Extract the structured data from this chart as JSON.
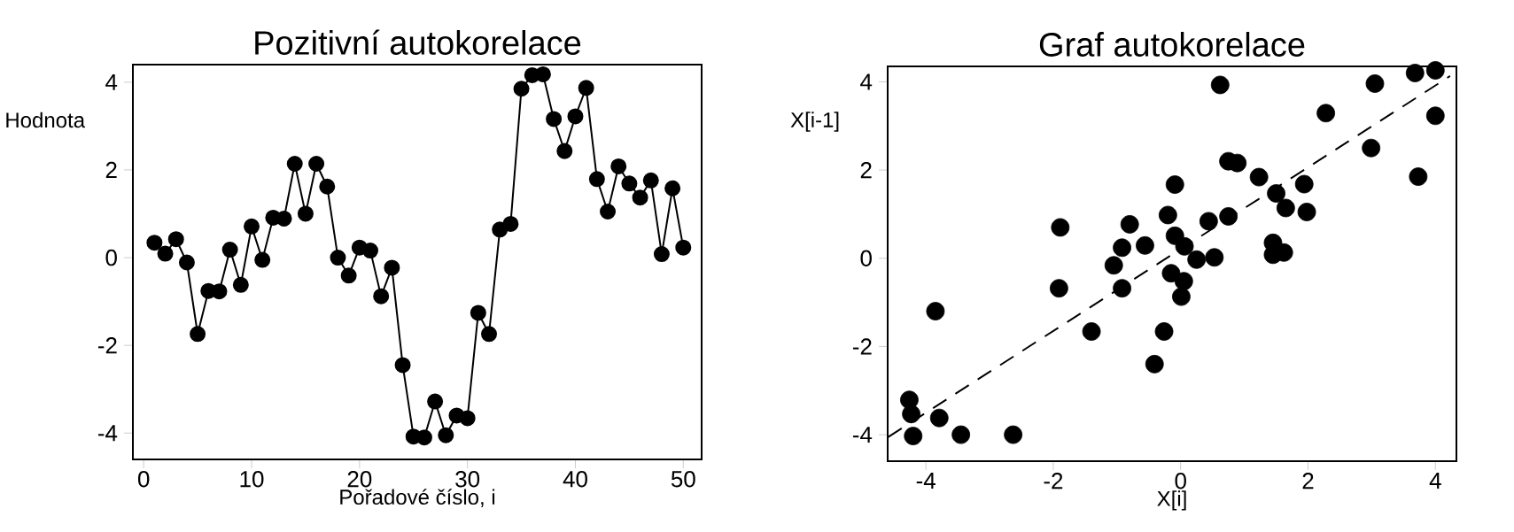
{
  "chart_data": [
    {
      "type": "line",
      "title": "Pozitivní autokorelace",
      "xlabel": "Pořadové číslo, i",
      "ylabel": "Hodnota",
      "color": "#000000",
      "marker": "circle",
      "line_style": "solid",
      "x": [
        1,
        2,
        3,
        4,
        5,
        6,
        7,
        8,
        9,
        10,
        11,
        12,
        13,
        14,
        15,
        16,
        17,
        18,
        19,
        20,
        21,
        22,
        23,
        24,
        25,
        26,
        27,
        28,
        29,
        30,
        31,
        32,
        33,
        34,
        35,
        36,
        37,
        38,
        39,
        40,
        41,
        42,
        43,
        44,
        45,
        46,
        47,
        48,
        49,
        50
      ],
      "values": [
        0.34,
        0.09,
        0.42,
        -0.11,
        -1.74,
        -0.76,
        -0.77,
        0.18,
        -0.62,
        0.71,
        -0.05,
        0.91,
        0.89,
        2.14,
        1.0,
        2.14,
        1.62,
        0.0,
        -0.41,
        0.23,
        0.16,
        -0.88,
        -0.23,
        -2.45,
        -4.08,
        -4.1,
        -3.28,
        -4.05,
        -3.6,
        -3.66,
        -1.26,
        -1.74,
        0.64,
        0.77,
        3.85,
        4.16,
        4.18,
        3.16,
        2.43,
        3.22,
        3.87,
        1.79,
        1.05,
        2.08,
        1.69,
        1.37,
        1.76,
        0.08,
        1.58,
        0.23
      ],
      "xlim": [
        -1,
        51.7
      ],
      "ylim": [
        -4.6,
        4.4
      ],
      "xticks": [
        0,
        10,
        20,
        30,
        40,
        50
      ],
      "yticks": [
        -4,
        -2,
        0,
        2,
        4
      ]
    },
    {
      "type": "scatter",
      "title": "Graf autokorelace",
      "xlabel": "X[i]",
      "ylabel": "X[i-1]",
      "marker": "circle",
      "xlim": [
        -4.6,
        4.33
      ],
      "ylim": [
        -4.6,
        4.35
      ],
      "xticks": [
        -4,
        -2,
        0,
        2,
        4
      ],
      "yticks": [
        -4,
        -2,
        0,
        2,
        4
      ],
      "series": [
        {
          "type": "scatter",
          "color": "#000000",
          "x": [
            0.62,
            3.05,
            3.68,
            4.0,
            2.28,
            4.0,
            2.99,
            3.73,
            0.75,
            0.89,
            1.23,
            -0.09,
            1.94,
            1.5,
            1.65,
            1.98,
            -0.2,
            0.44,
            0.75,
            -1.89,
            -0.8,
            -0.92,
            -0.56,
            -0.09,
            0.06,
            0.25,
            0.53,
            1.45,
            1.62,
            1.45,
            -1.05,
            -0.15,
            0.05,
            0.01,
            -0.92,
            -1.91,
            -3.85,
            -1.4,
            -0.26,
            -0.41,
            -4.26,
            -4.23,
            -3.79,
            -4.2,
            -3.45,
            -2.63
          ],
          "values": [
            3.93,
            3.96,
            4.2,
            4.26,
            3.29,
            3.23,
            2.5,
            1.85,
            2.2,
            2.16,
            1.84,
            1.67,
            1.68,
            1.47,
            1.14,
            1.05,
            0.98,
            0.84,
            0.95,
            0.7,
            0.77,
            0.24,
            0.29,
            0.51,
            0.27,
            -0.03,
            0.02,
            0.35,
            0.13,
            0.08,
            -0.16,
            -0.34,
            -0.52,
            -0.87,
            -0.68,
            -0.68,
            -1.2,
            -1.66,
            -1.66,
            -2.4,
            -3.21,
            -3.53,
            -3.62,
            -4.03,
            -4.0,
            -4.0
          ]
        },
        {
          "type": "line",
          "color": "#000000",
          "line_style": "dashed",
          "marker": "none",
          "x": [
            -4.59,
            4.23
          ],
          "values": [
            -4.05,
            4.13
          ]
        }
      ]
    }
  ]
}
